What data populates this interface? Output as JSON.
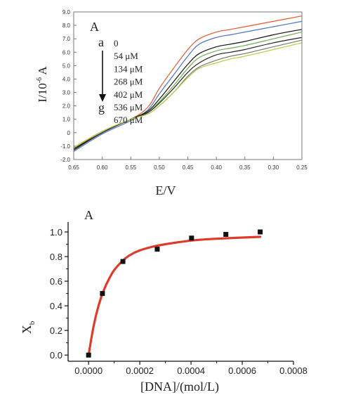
{
  "chart_data": [
    {
      "type": "line",
      "panel_label": "A",
      "xlabel": "E/V",
      "ylabel_base": "I/10",
      "ylabel_exp": "-6",
      "ylabel_unit": " A",
      "xlim": [
        0.65,
        0.25
      ],
      "ylim": [
        -2.0,
        9.0
      ],
      "x_ticks": [
        "0.65",
        "0.60",
        "0.55",
        "0.50",
        "0.45",
        "0.40",
        "0.35",
        "0.30",
        "0.25"
      ],
      "y_ticks": [
        "-2.0",
        "-1.0",
        "0",
        "1.0",
        "2.0",
        "3.0",
        "4.0",
        "5.0",
        "6.0",
        "7.0",
        "8.0",
        "9.0"
      ],
      "arrow_start_label": "a",
      "arrow_end_label": "g",
      "legend": [
        "0",
        "54 μM",
        "134 μM",
        "268 μM",
        "402 μM",
        "536 μM",
        "670 μM"
      ],
      "x": [
        0.65,
        0.6,
        0.55,
        0.52,
        0.5,
        0.475,
        0.45,
        0.43,
        0.4,
        0.375,
        0.35,
        0.3,
        0.25
      ],
      "series": [
        {
          "color": "#e8552e",
          "values": [
            -1.2,
            0.1,
            1.0,
            1.9,
            3.3,
            4.8,
            6.2,
            7.0,
            7.5,
            7.7,
            7.9,
            8.3,
            8.7
          ]
        },
        {
          "color": "#4b73c4",
          "values": [
            -1.4,
            -0.1,
            0.9,
            1.7,
            2.9,
            4.3,
            5.7,
            6.6,
            7.1,
            7.3,
            7.5,
            7.9,
            8.3
          ]
        },
        {
          "color": "#111111",
          "values": [
            -1.3,
            0.0,
            1.0,
            1.6,
            2.5,
            3.8,
            5.1,
            5.9,
            6.4,
            6.6,
            6.8,
            7.3,
            7.7
          ]
        },
        {
          "color": "#6ab14f",
          "values": [
            -1.2,
            0.0,
            1.0,
            1.5,
            2.3,
            3.5,
            4.8,
            5.6,
            6.1,
            6.3,
            6.5,
            7.0,
            7.5
          ]
        },
        {
          "color": "#222222",
          "values": [
            -1.2,
            0.0,
            1.0,
            1.5,
            2.2,
            3.3,
            4.5,
            5.2,
            5.8,
            6.0,
            6.2,
            6.7,
            7.1
          ]
        },
        {
          "color": "#7a7a7a",
          "values": [
            -1.1,
            0.1,
            1.0,
            1.4,
            2.0,
            3.0,
            4.2,
            4.9,
            5.4,
            5.7,
            5.9,
            6.4,
            6.9
          ]
        },
        {
          "color": "#b6cf3a",
          "values": [
            -1.1,
            0.1,
            1.0,
            1.4,
            2.0,
            3.0,
            4.1,
            4.8,
            5.2,
            5.5,
            5.7,
            6.2,
            6.7
          ]
        }
      ]
    },
    {
      "type": "scatter",
      "panel_label": "A",
      "xlabel": "[DNA]/(mol/L)",
      "ylabel_base": "X",
      "ylabel_sub": "b",
      "xlim": [
        -8e-05,
        0.0008
      ],
      "ylim": [
        -0.05,
        1.08
      ],
      "x_ticks": [
        "0.0000",
        "0.0002",
        "0.0004",
        "0.0006",
        "0.0008"
      ],
      "y_ticks": [
        "0.0",
        "0.2",
        "0.4",
        "0.6",
        "0.8",
        "1.0"
      ],
      "points": {
        "x": [
          0.0,
          5.4e-05,
          0.000134,
          0.000268,
          0.000402,
          0.000536,
          0.00067
        ],
        "y": [
          0.0,
          0.5,
          0.76,
          0.86,
          0.95,
          0.98,
          1.0
        ]
      },
      "fit": {
        "color": "#e03a2a",
        "x": [
          0.0,
          2e-05,
          4e-05,
          6e-05,
          8e-05,
          0.0001,
          0.00013,
          0.00016,
          0.0002,
          0.00025,
          0.0003,
          0.0004,
          0.0005,
          0.00067
        ],
        "y": [
          0.0,
          0.24,
          0.41,
          0.53,
          0.62,
          0.69,
          0.76,
          0.81,
          0.85,
          0.88,
          0.9,
          0.93,
          0.945,
          0.96
        ]
      }
    }
  ]
}
